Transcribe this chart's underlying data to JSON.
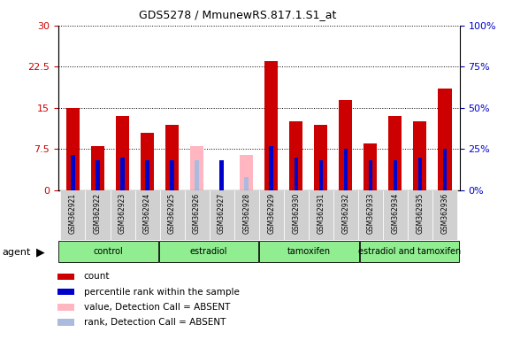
{
  "title": "GDS5278 / MmunewRS.817.1.S1_at",
  "samples": [
    "GSM362921",
    "GSM362922",
    "GSM362923",
    "GSM362924",
    "GSM362925",
    "GSM362926",
    "GSM362927",
    "GSM362928",
    "GSM362929",
    "GSM362930",
    "GSM362931",
    "GSM362932",
    "GSM362933",
    "GSM362934",
    "GSM362935",
    "GSM362936"
  ],
  "count_values": [
    15.0,
    8.0,
    13.5,
    10.5,
    12.0,
    null,
    null,
    null,
    23.5,
    12.5,
    12.0,
    16.5,
    8.5,
    13.5,
    12.5,
    18.5
  ],
  "count_absent": [
    null,
    null,
    null,
    null,
    null,
    8.0,
    null,
    6.5,
    null,
    null,
    null,
    null,
    null,
    null,
    null,
    null
  ],
  "rank_values": [
    6.5,
    5.5,
    6.0,
    5.5,
    5.5,
    null,
    5.5,
    null,
    8.0,
    6.0,
    5.5,
    7.5,
    5.5,
    5.5,
    6.0,
    7.5
  ],
  "rank_absent": [
    null,
    null,
    null,
    null,
    null,
    5.5,
    null,
    2.5,
    null,
    null,
    null,
    null,
    null,
    null,
    null,
    null
  ],
  "groups": [
    {
      "label": "control",
      "start": 0,
      "end": 3,
      "color": "#90EE90"
    },
    {
      "label": "estradiol",
      "start": 4,
      "end": 7,
      "color": "#90EE90"
    },
    {
      "label": "tamoxifen",
      "start": 8,
      "end": 11,
      "color": "#90EE90"
    },
    {
      "label": "estradiol and tamoxifen",
      "start": 12,
      "end": 15,
      "color": "#90EE90"
    }
  ],
  "ylim_left": [
    0,
    30
  ],
  "ylim_right": [
    0,
    100
  ],
  "yticks_left": [
    0,
    7.5,
    15,
    22.5,
    30
  ],
  "yticks_right": [
    0,
    25,
    50,
    75,
    100
  ],
  "bar_width": 0.55,
  "count_color": "#CC0000",
  "count_absent_color": "#FFB6C1",
  "rank_color": "#0000CC",
  "rank_absent_color": "#AABBDD",
  "left_tick_color": "#CC0000",
  "right_tick_color": "#0000CC"
}
